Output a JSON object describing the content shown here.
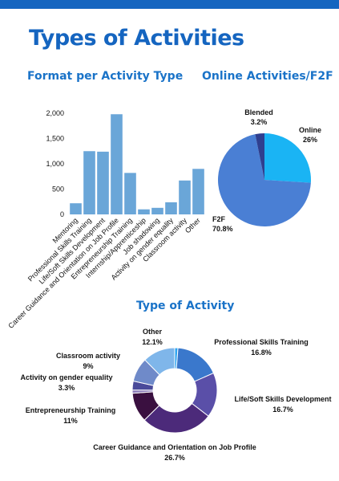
{
  "page": {
    "title": "Types of Activities",
    "colors": {
      "title": "#1565c0",
      "section": "#1a73c8",
      "topbar": "#1565c0",
      "bar": "#6aa6d8"
    }
  },
  "chart_data": [
    {
      "type": "bar",
      "title": "Format per Activity Type",
      "categories": [
        "Mentoring",
        "Professional Skills Training",
        "Life/Soft Skills Development",
        "Career Guidance and Orientation on Job Profile",
        "Entrepreneurship Training",
        "Internship/Apprenticeship",
        "Job shadowing",
        "Activity on gender equality",
        "Classroom activity",
        "Other"
      ],
      "values": [
        220,
        1250,
        1240,
        1980,
        820,
        100,
        130,
        240,
        670,
        900
      ],
      "ylim": [
        0,
        2000
      ],
      "yticks": [
        0,
        500,
        1000,
        1500,
        2000
      ],
      "ytick_labels": [
        "0",
        "500",
        "1,000",
        "1,500",
        "2,000"
      ],
      "color": "#6aa6d8",
      "grid": false
    },
    {
      "type": "pie",
      "title": "Online Activities/F2F",
      "slices": [
        {
          "name": "Online",
          "label": "26%",
          "value": 26.0,
          "color": "#1ab4f4"
        },
        {
          "name": "F2F",
          "label": "70.8%",
          "value": 70.8,
          "color": "#4a7fd4"
        },
        {
          "name": "Blended",
          "label": "3.2%",
          "value": 3.2,
          "color": "#2f3f8f"
        }
      ]
    },
    {
      "type": "pie",
      "subtype": "donut",
      "title": "Type of Activity",
      "slices": [
        {
          "name": "",
          "label": "",
          "value": 1.2,
          "color": "#2ea4f0"
        },
        {
          "name": "Professional Skills Training",
          "label": "16.8%",
          "value": 16.8,
          "color": "#3a78cc"
        },
        {
          "name": "Life/Soft Skills Development",
          "label": "16.7%",
          "value": 16.7,
          "color": "#5a4fa8"
        },
        {
          "name": "Career Guidance and Orientation on Job Profile",
          "label": "26.7%",
          "value": 26.7,
          "color": "#4c2a7a"
        },
        {
          "name": "Entrepreneurship Training",
          "label": "11%",
          "value": 11.0,
          "color": "#3a1040"
        },
        {
          "name": "",
          "label": "",
          "value": 1.2,
          "color": "#8a7ab8"
        },
        {
          "name": "Activity on gender equality",
          "label": "3.3%",
          "value": 3.3,
          "color": "#4a4a9a"
        },
        {
          "name": "Classroom activity",
          "label": "9%",
          "value": 9.0,
          "color": "#6f8ac9"
        },
        {
          "name": "Other",
          "label": "12.1%",
          "value": 12.1,
          "color": "#7fb6ea"
        }
      ]
    }
  ]
}
